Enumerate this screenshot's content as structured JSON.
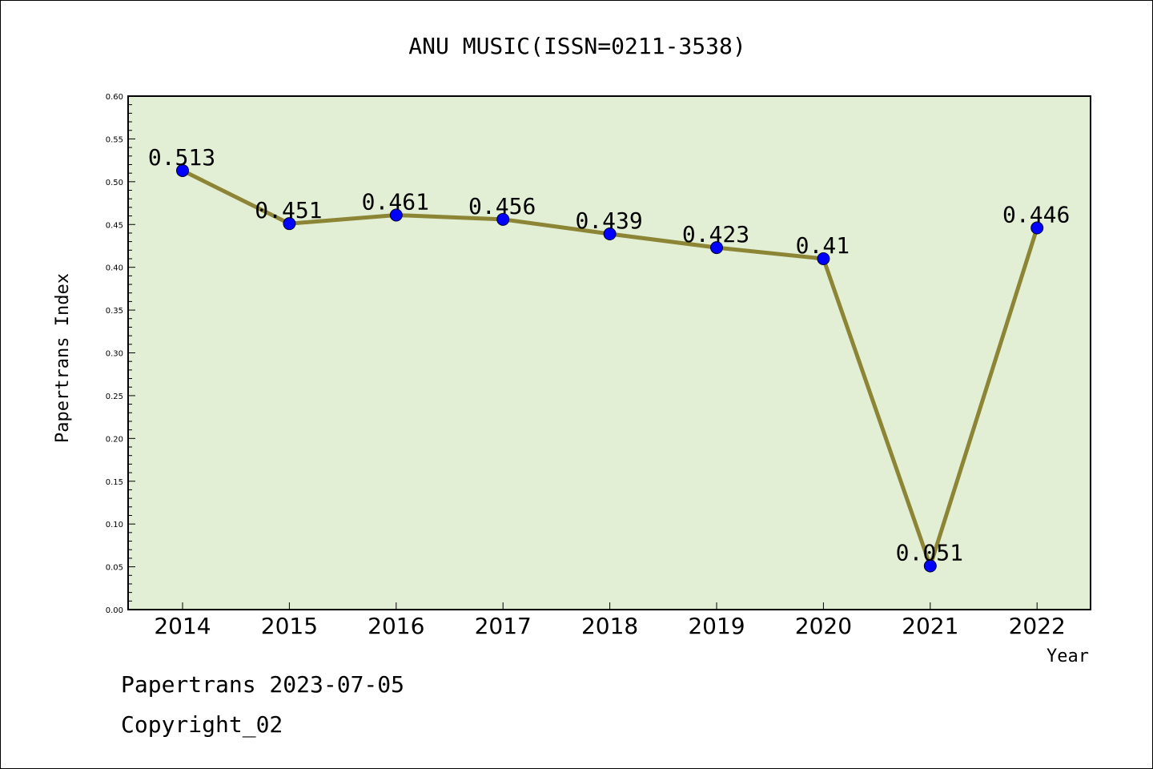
{
  "footer": {
    "line1": "Papertrans 2023-07-05",
    "line2": "Copyright_02"
  },
  "colors": {
    "plot_background": "#e2efd4",
    "line": "#8c8535",
    "marker": "#0000ff"
  },
  "chart_data": {
    "type": "line",
    "title": "ANU MUSIC(ISSN=0211-3538)",
    "xlabel": "Year",
    "ylabel": "Papertrans Index",
    "categories": [
      "2014",
      "2015",
      "2016",
      "2017",
      "2018",
      "2019",
      "2020",
      "2021",
      "2022"
    ],
    "values": [
      0.513,
      0.451,
      0.461,
      0.456,
      0.439,
      0.423,
      0.41,
      0.051,
      0.446
    ],
    "data_labels": [
      "0.513",
      "0.451",
      "0.461",
      "0.456",
      "0.439",
      "0.423",
      "0.41",
      "0.051",
      "0.446"
    ],
    "ylim": [
      0,
      0.6
    ],
    "yticks": [
      "0.00",
      "0.05",
      "0.10",
      "0.15",
      "0.20",
      "0.25",
      "0.30",
      "0.35",
      "0.40",
      "0.45",
      "0.50",
      "0.55",
      "0.60"
    ],
    "grid": false,
    "legend": "none"
  }
}
